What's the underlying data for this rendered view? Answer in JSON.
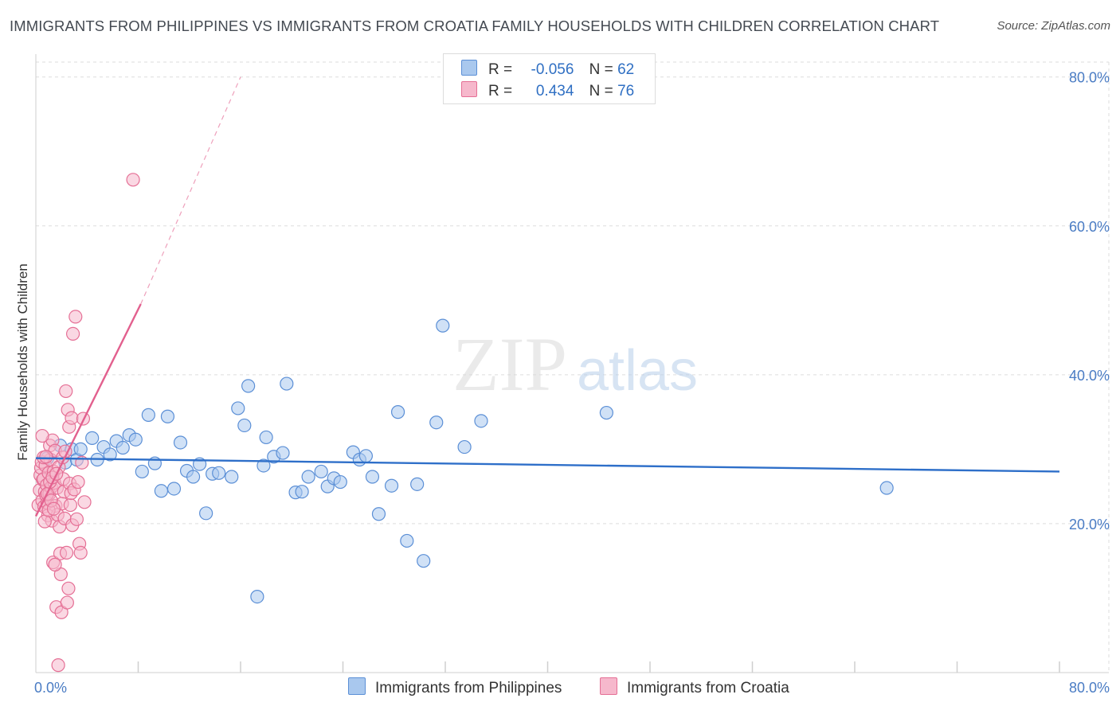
{
  "header": {
    "title": "IMMIGRANTS FROM PHILIPPINES VS IMMIGRANTS FROM CROATIA FAMILY HOUSEHOLDS WITH CHILDREN CORRELATION CHART",
    "source": "Source: ZipAtlas.com"
  },
  "watermark": {
    "zip": "ZIP",
    "atlas": "atlas"
  },
  "legend": {
    "rows": [
      {
        "r_label": "R =",
        "r_value": "-0.056",
        "n_label": "N =",
        "n_value": "62"
      },
      {
        "r_label": "R =",
        "r_value": "0.434",
        "n_label": "N =",
        "n_value": "76"
      }
    ]
  },
  "colors": {
    "blue_fill": "#a9c8ee",
    "blue_stroke": "#5b8fd6",
    "blue_line": "#2e6fc9",
    "pink_fill": "#f6b8cc",
    "pink_stroke": "#e56f95",
    "pink_line": "#e2608e",
    "grid": "#dddddd",
    "tick_text": "#4a7cc4"
  },
  "chart_data": {
    "type": "scatter",
    "title": "IMMIGRANTS FROM PHILIPPINES VS IMMIGRANTS FROM CROATIA FAMILY HOUSEHOLDS WITH CHILDREN CORRELATION CHART",
    "ylabel": "Family Households with Children",
    "xlabel": "",
    "xlim": [
      0,
      80
    ],
    "ylim": [
      0,
      82
    ],
    "x_tick_labels": [
      "0.0%",
      "80.0%"
    ],
    "y_ticks": [
      20,
      40,
      60,
      80
    ],
    "y_tick_labels": [
      "20.0%",
      "40.0%",
      "60.0%",
      "80.0%"
    ],
    "legend_position": "top-center",
    "series": [
      {
        "name": "Immigrants from Philippines",
        "color": "#a9c8ee",
        "r": -0.056,
        "n": 62,
        "trend": {
          "x": [
            0,
            80
          ],
          "y": [
            28.8,
            27.0
          ],
          "dashed_extension": false
        },
        "points": [
          [
            0.9,
            28.8
          ],
          [
            1.9,
            30.5
          ],
          [
            2.3,
            28.2
          ],
          [
            2.8,
            30.0
          ],
          [
            3.2,
            28.6
          ],
          [
            3.5,
            30.0
          ],
          [
            4.4,
            31.5
          ],
          [
            4.8,
            28.6
          ],
          [
            5.3,
            30.3
          ],
          [
            5.8,
            29.3
          ],
          [
            6.3,
            31.1
          ],
          [
            6.8,
            30.2
          ],
          [
            7.3,
            31.9
          ],
          [
            7.8,
            31.3
          ],
          [
            8.3,
            27.0
          ],
          [
            8.8,
            34.6
          ],
          [
            9.3,
            28.1
          ],
          [
            9.8,
            24.4
          ],
          [
            10.3,
            34.4
          ],
          [
            10.8,
            24.7
          ],
          [
            11.3,
            30.9
          ],
          [
            11.8,
            27.1
          ],
          [
            12.3,
            26.3
          ],
          [
            12.8,
            28.0
          ],
          [
            13.3,
            21.4
          ],
          [
            13.8,
            26.7
          ],
          [
            14.3,
            26.8
          ],
          [
            15.3,
            26.3
          ],
          [
            15.8,
            35.5
          ],
          [
            16.3,
            33.2
          ],
          [
            16.6,
            38.5
          ],
          [
            17.3,
            10.2
          ],
          [
            17.8,
            27.8
          ],
          [
            18.0,
            31.6
          ],
          [
            18.6,
            29.0
          ],
          [
            19.3,
            29.5
          ],
          [
            19.6,
            38.8
          ],
          [
            20.3,
            24.2
          ],
          [
            20.8,
            24.3
          ],
          [
            21.3,
            26.3
          ],
          [
            22.3,
            27.0
          ],
          [
            22.8,
            25.0
          ],
          [
            23.3,
            26.1
          ],
          [
            23.8,
            25.6
          ],
          [
            24.8,
            29.6
          ],
          [
            25.3,
            28.6
          ],
          [
            25.8,
            29.1
          ],
          [
            26.3,
            26.3
          ],
          [
            26.8,
            21.3
          ],
          [
            27.8,
            25.1
          ],
          [
            28.3,
            35.0
          ],
          [
            29.0,
            17.7
          ],
          [
            29.8,
            25.3
          ],
          [
            30.3,
            15.0
          ],
          [
            31.3,
            33.6
          ],
          [
            31.8,
            46.6
          ],
          [
            33.5,
            30.3
          ],
          [
            34.8,
            33.8
          ],
          [
            44.6,
            34.9
          ],
          [
            66.5,
            24.8
          ]
        ]
      },
      {
        "name": "Immigrants from Croatia",
        "color": "#f6b8cc",
        "r": 0.434,
        "n": 76,
        "trend": {
          "x": [
            0,
            8.2
          ],
          "y": [
            21.0,
            49.5
          ],
          "dashed_extension": {
            "x": [
              8.2,
              16.0
            ],
            "y": [
              49.5,
              80.0
            ]
          }
        },
        "points": [
          [
            0.2,
            22.5
          ],
          [
            0.3,
            24.5
          ],
          [
            0.35,
            26.5
          ],
          [
            0.4,
            27.5
          ],
          [
            0.45,
            28.3
          ],
          [
            0.5,
            23.1
          ],
          [
            0.55,
            25.9
          ],
          [
            0.6,
            26.0
          ],
          [
            0.65,
            22.3
          ],
          [
            0.7,
            24.3
          ],
          [
            0.75,
            27.8
          ],
          [
            0.8,
            23.8
          ],
          [
            0.85,
            25.2
          ],
          [
            0.9,
            22.8
          ],
          [
            0.95,
            21.1
          ],
          [
            1.0,
            26.8
          ],
          [
            1.05,
            24.0
          ],
          [
            1.1,
            30.5
          ],
          [
            1.15,
            28.6
          ],
          [
            1.2,
            24.9
          ],
          [
            1.25,
            20.4
          ],
          [
            1.3,
            31.2
          ],
          [
            1.35,
            14.8
          ],
          [
            1.4,
            27.0
          ],
          [
            1.45,
            25.5
          ],
          [
            1.5,
            29.8
          ],
          [
            1.55,
            22.4
          ],
          [
            1.6,
            8.8
          ],
          [
            1.65,
            24.8
          ],
          [
            1.7,
            21.2
          ],
          [
            1.75,
            1.0
          ],
          [
            1.8,
            27.6
          ],
          [
            1.85,
            19.6
          ],
          [
            1.9,
            16.0
          ],
          [
            1.95,
            13.2
          ],
          [
            2.0,
            8.1
          ],
          [
            2.05,
            22.7
          ],
          [
            2.1,
            28.9
          ],
          [
            2.15,
            26.0
          ],
          [
            2.2,
            24.3
          ],
          [
            2.25,
            20.7
          ],
          [
            2.3,
            29.7
          ],
          [
            2.35,
            37.8
          ],
          [
            2.4,
            16.1
          ],
          [
            2.45,
            9.4
          ],
          [
            2.5,
            35.3
          ],
          [
            2.55,
            11.3
          ],
          [
            2.6,
            33.0
          ],
          [
            2.65,
            25.4
          ],
          [
            2.7,
            22.5
          ],
          [
            2.75,
            24.1
          ],
          [
            2.8,
            34.2
          ],
          [
            2.85,
            19.8
          ],
          [
            2.9,
            45.5
          ],
          [
            3.0,
            24.6
          ],
          [
            3.1,
            47.8
          ],
          [
            3.2,
            20.6
          ],
          [
            3.3,
            25.6
          ],
          [
            3.4,
            17.3
          ],
          [
            3.5,
            16.1
          ],
          [
            3.6,
            28.2
          ],
          [
            3.7,
            34.1
          ],
          [
            3.8,
            22.9
          ],
          [
            7.6,
            66.2
          ],
          [
            0.5,
            31.8
          ],
          [
            0.6,
            28.9
          ],
          [
            0.7,
            20.3
          ],
          [
            0.8,
            29.0
          ],
          [
            0.9,
            24.0
          ],
          [
            1.0,
            21.8
          ],
          [
            1.1,
            25.6
          ],
          [
            1.2,
            23.1
          ],
          [
            1.3,
            26.2
          ],
          [
            1.4,
            22.0
          ],
          [
            1.5,
            14.5
          ],
          [
            1.6,
            26.7
          ]
        ]
      }
    ]
  }
}
